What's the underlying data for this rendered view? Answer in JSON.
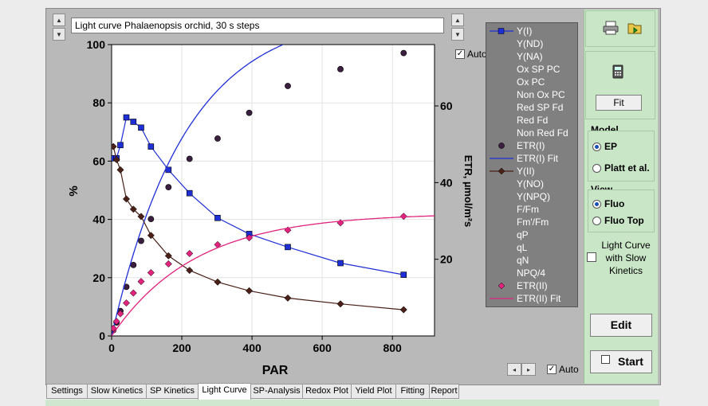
{
  "window": {
    "title_text": "Light curve Phalaenopsis orchid, 30 s steps",
    "auto_top_label": "Auto",
    "auto_bottom_label": "Auto"
  },
  "legend": {
    "items": [
      {
        "label": "Y(I)",
        "symbol": "blue-square-line"
      },
      {
        "label": "Y(ND)",
        "symbol": "none"
      },
      {
        "label": "Y(NA)",
        "symbol": "none"
      },
      {
        "label": "Ox SP PC",
        "symbol": "none"
      },
      {
        "label": "Ox PC",
        "symbol": "none"
      },
      {
        "label": "Non Ox PC",
        "symbol": "none"
      },
      {
        "label": "Red SP Fd",
        "symbol": "none"
      },
      {
        "label": "Red Fd",
        "symbol": "none"
      },
      {
        "label": "Non Red Fd",
        "symbol": "none"
      },
      {
        "label": "ETR(I)",
        "symbol": "dark-circle"
      },
      {
        "label": "ETR(I) Fit",
        "symbol": "blue-line"
      },
      {
        "label": "Y(II)",
        "symbol": "brown-diamond-line"
      },
      {
        "label": "Y(NO)",
        "symbol": "none"
      },
      {
        "label": "Y(NPQ)",
        "symbol": "none"
      },
      {
        "label": "F/Fm",
        "symbol": "none"
      },
      {
        "label": "Fm'/Fm",
        "symbol": "none"
      },
      {
        "label": "qP",
        "symbol": "none"
      },
      {
        "label": "qL",
        "symbol": "none"
      },
      {
        "label": "qN",
        "symbol": "none"
      },
      {
        "label": "NPQ/4",
        "symbol": "none"
      },
      {
        "label": "ETR(II)",
        "symbol": "pink-diamond"
      },
      {
        "label": "ETR(II) Fit",
        "symbol": "pink-line"
      }
    ]
  },
  "right_panel": {
    "fit_label": "Fit",
    "model_title": "Model",
    "model_options": [
      "EP",
      "Platt et al."
    ],
    "view_title": "View",
    "view_options": [
      "Fluo",
      "Fluo Top"
    ],
    "slow_kinetics_label": "Light Curve with Slow Kinetics",
    "edit_label": "Edit",
    "start_label": "Start"
  },
  "tabs": [
    "Settings",
    "Slow Kinetics",
    "SP Kinetics",
    "Light Curve",
    "SP-Analysis",
    "Redox Plot",
    "Yield Plot",
    "Fitting",
    "Report"
  ],
  "active_tab": "Light Curve",
  "chart_data": {
    "type": "scatter",
    "xlabel": "PAR",
    "ylabel_left": "%",
    "ylabel_right": "ETR, µmol/m²s",
    "xlim": [
      0,
      920
    ],
    "ylim_left": [
      0,
      100
    ],
    "ylim_right": [
      0,
      76
    ],
    "x_ticks": [
      0,
      200,
      400,
      600,
      800
    ],
    "y_ticks_left": [
      0,
      20,
      40,
      60,
      80,
      100
    ],
    "y_ticks_right": [
      20,
      40,
      60
    ],
    "grid": true,
    "series": [
      {
        "name": "Y(I)",
        "axis": "left",
        "color": "#1f2fd6",
        "marker": "square",
        "line": true,
        "x": [
          5,
          14,
          25,
          42,
          62,
          84,
          112,
          162,
          222,
          302,
          392,
          502,
          652,
          832
        ],
        "y": [
          61,
          61,
          65.5,
          75,
          73.5,
          71.5,
          65,
          57,
          49,
          40.5,
          35,
          30.5,
          25,
          21
        ]
      },
      {
        "name": "ETR(I)",
        "axis": "right",
        "color": "#3a1f3f",
        "marker": "circle",
        "line": false,
        "x": [
          5,
          14,
          25,
          42,
          62,
          84,
          112,
          162,
          222,
          302,
          392,
          502,
          652,
          832
        ],
        "y": [
          1.5,
          3.5,
          6.5,
          12.8,
          18.5,
          24.8,
          30.5,
          38.8,
          46.2,
          51.5,
          58.2,
          65.2,
          69.6,
          73.8
        ]
      },
      {
        "name": "ETR(I) Fit",
        "axis": "right",
        "color": "#1f2fd6",
        "marker": "none",
        "line": true,
        "fit": {
          "max": 84.5,
          "k": 0.0047
        }
      },
      {
        "name": "Y(II)",
        "axis": "left",
        "color": "#4a2018",
        "marker": "diamond",
        "line": true,
        "x": [
          5,
          14,
          25,
          42,
          62,
          84,
          112,
          162,
          222,
          302,
          392,
          502,
          652,
          832
        ],
        "y": [
          65,
          60.5,
          57,
          47,
          43.5,
          41,
          34.5,
          27.5,
          22.5,
          18.5,
          15.5,
          13,
          11,
          9
        ]
      },
      {
        "name": "ETR(II)",
        "axis": "right",
        "color": "#e0247e",
        "marker": "diamond",
        "line": false,
        "x": [
          5,
          14,
          25,
          42,
          62,
          84,
          112,
          162,
          222,
          302,
          392,
          502,
          652,
          832
        ],
        "y": [
          2,
          3.8,
          5.8,
          8.6,
          11.2,
          14.2,
          16.5,
          18.8,
          21.5,
          23.8,
          25.6,
          27.6,
          29.5,
          31.2
        ]
      },
      {
        "name": "ETR(II) Fit",
        "axis": "right",
        "color": "#e0247e",
        "marker": "none",
        "line": true,
        "fit": {
          "max": 32.0,
          "k": 0.0042
        }
      }
    ]
  }
}
